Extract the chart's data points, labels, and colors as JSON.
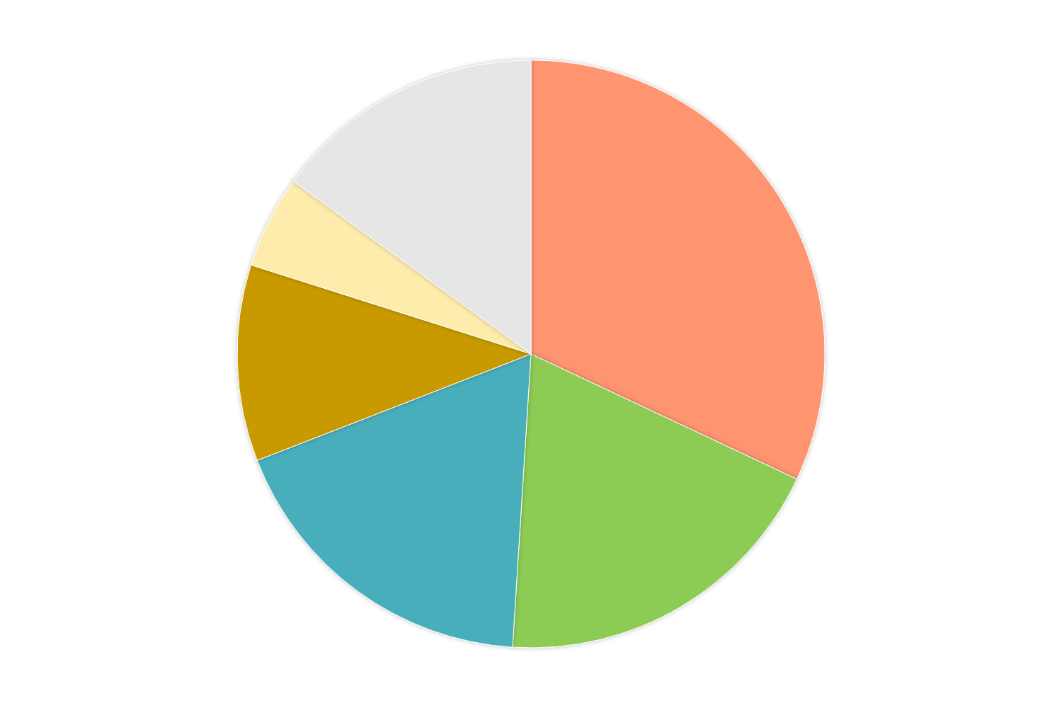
{
  "chart_data": {
    "type": "pie",
    "categories": [
      null,
      null,
      null,
      null,
      null,
      null
    ],
    "values": [
      32.0,
      19.0,
      18.1,
      10.8,
      5.1,
      15.0
    ],
    "colors": [
      "#fe9470",
      "#8ccc54",
      "#4aaebb",
      "#c89a00",
      "#feecad",
      "#e6e6e6"
    ]
  }
}
